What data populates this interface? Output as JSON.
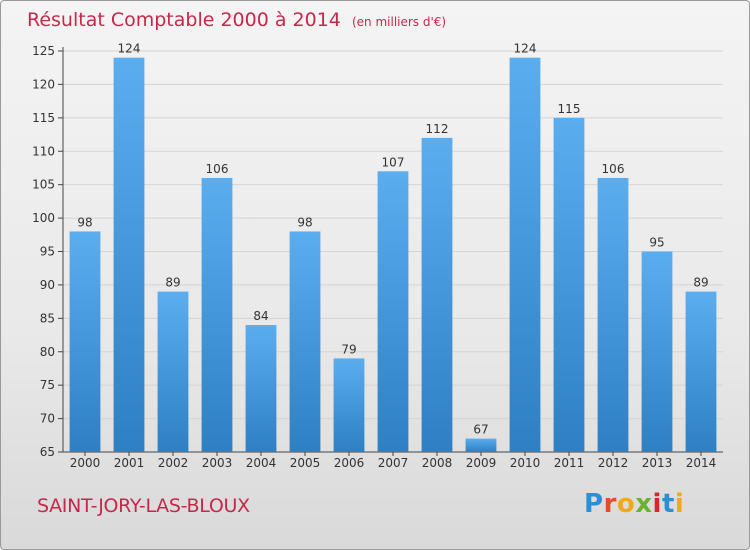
{
  "title": "Résultat Comptable 2000 à 2014",
  "subtitle": "(en milliers d'€)",
  "commune": "SAINT-JORY-LAS-BLOUX",
  "brand": {
    "text": "Proxiti",
    "letter_colors": [
      "#2b8fd6",
      "#e84a2a",
      "#f2a81d",
      "#6ab32e",
      "#d9262e",
      "#2b8fd6",
      "#f2a81d"
    ]
  },
  "colors": {
    "bar_top": "#5aaef0",
    "bar_bottom": "#2e7fc4",
    "text_accent": "#c8274a"
  },
  "chart_data": {
    "type": "bar",
    "categories": [
      "2000",
      "2001",
      "2002",
      "2003",
      "2004",
      "2005",
      "2006",
      "2007",
      "2008",
      "2009",
      "2010",
      "2011",
      "2012",
      "2013",
      "2014"
    ],
    "values": [
      98,
      124,
      89,
      106,
      84,
      98,
      79,
      107,
      112,
      67,
      124,
      115,
      106,
      95,
      89
    ],
    "ylim": [
      65,
      125
    ],
    "yticks": [
      65,
      70,
      75,
      80,
      85,
      90,
      95,
      100,
      105,
      110,
      115,
      120,
      125
    ],
    "grid": true
  }
}
